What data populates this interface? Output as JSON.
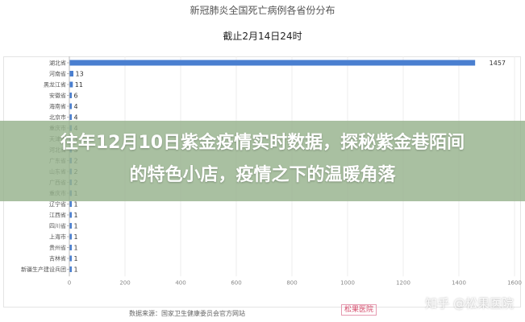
{
  "chart_data": {
    "type": "bar",
    "orientation": "horizontal",
    "title": "新冠肺炎全国死亡病例各省份分布",
    "subtitle": "截止2月14日24时",
    "categories": [
      "湖北省",
      "河南省",
      "黑龙江省",
      "安徽省",
      "海南省",
      "北京市",
      "重庆市",
      "天津市",
      "河北省",
      "广东省",
      "山东省",
      "广西省",
      "重庆市",
      "辽宁省",
      "江西省",
      "四川省",
      "上海市",
      "贵州省",
      "吉林省",
      "新疆生产建设兵团"
    ],
    "values": [
      1457,
      13,
      11,
      6,
      4,
      4,
      4,
      3,
      3,
      2,
      2,
      2,
      1,
      1,
      1,
      1,
      1,
      1,
      1,
      1
    ],
    "xlim": [
      0,
      1600
    ],
    "xticks": [
      "0",
      "200",
      "400",
      "600",
      "800",
      "1000",
      "1200",
      "1400",
      "1600"
    ],
    "bar_color": "#4a7fd0",
    "grid": true
  },
  "source_text": "数据来源：国家卫生健康委员会官方网站",
  "logo_text": "松果医院",
  "headline": {
    "line1": "往年12月10日紫金疫情实时数据，探秘紫金巷陌间",
    "line2": "的特色小店，疫情之下的温暖角落"
  },
  "watermark_text": "知乎 @松果医院"
}
